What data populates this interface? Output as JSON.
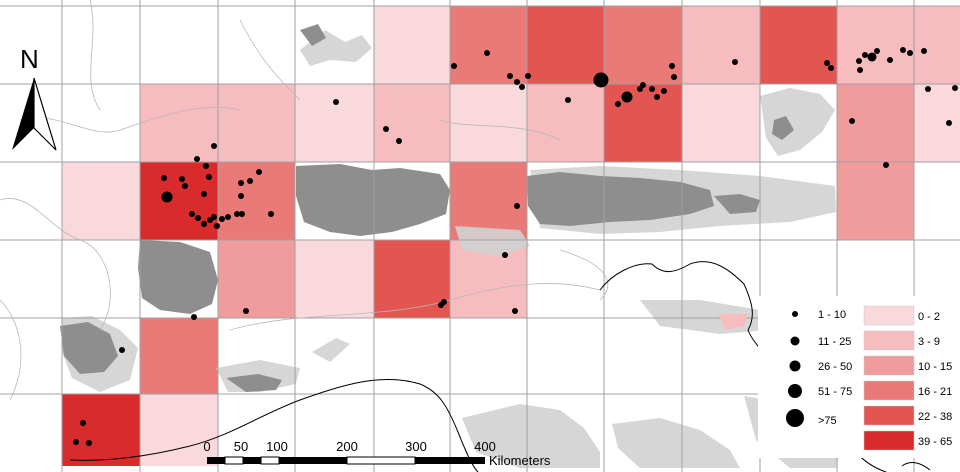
{
  "map": {
    "north_label": "N",
    "grid_cell_colors": {
      "c0": "#f9d9db",
      "c1": "#f6bcbe",
      "c2": "#f19c9c",
      "c3": "#ea7a77",
      "c4": "#e25550",
      "c5": "#d92b2b"
    },
    "relief_color": "#8e8e8e",
    "lowland_color": "#d2d2d2",
    "grid_line_color": "#a0a0a0",
    "occurrence_point_color": "#000000"
  },
  "legend": {
    "points": [
      {
        "label": "1 - 10"
      },
      {
        "label": "11 - 25"
      },
      {
        "label": "26 - 50"
      },
      {
        "label": "51 - 75"
      },
      {
        "label": ">75"
      }
    ],
    "classes": [
      {
        "label": "0 - 2",
        "color": "#f9d9db"
      },
      {
        "label": "3 - 9",
        "color": "#f6bcbe"
      },
      {
        "label": "10 - 15",
        "color": "#f19c9c"
      },
      {
        "label": "16 - 21",
        "color": "#ea7a77"
      },
      {
        "label": "22 - 38",
        "color": "#e25550"
      },
      {
        "label": "39 - 65",
        "color": "#d92b2b"
      }
    ]
  },
  "scale_bar": {
    "ticks": [
      "0",
      "50",
      "100",
      "200",
      "300",
      "400"
    ],
    "unit": "Kilometers"
  }
}
